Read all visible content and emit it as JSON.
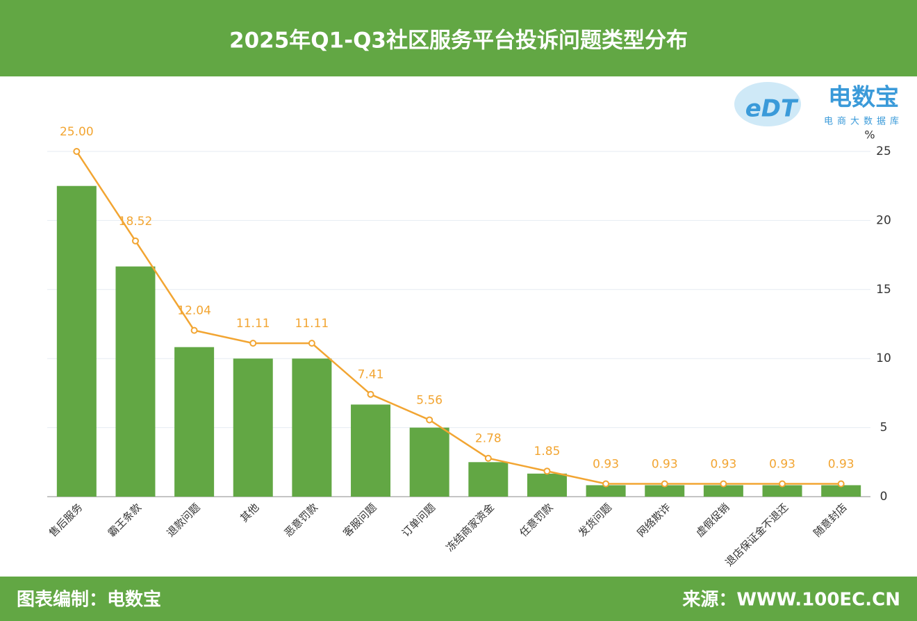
{
  "chart_data": {
    "type": "bar_line",
    "title": "2025年Q1-Q3社区服务平台投诉问题类型分布",
    "logo": {
      "mark": "eDT",
      "name": "电数宝",
      "tagline": "电商大数据库"
    },
    "credit": "图表编制：电数宝",
    "source": "来源：WWW.100EC.CN",
    "y_label": "%",
    "categories": [
      "售后服务",
      "霸王条款",
      "退款问题",
      "其他",
      "恶意罚款",
      "客服问题",
      "订单问题",
      "冻结商家资金",
      "任意罚款",
      "发货问题",
      "网络欺诈",
      "虚假促销",
      "退店保证金不退还",
      "随意封店"
    ],
    "series": [
      {
        "type": "bar",
        "color": "#62a744",
        "values": [
          22.5,
          16.67,
          10.83,
          10,
          10,
          6.67,
          5,
          2.5,
          1.67,
          0.83,
          0.83,
          0.83,
          0.83,
          0.83
        ]
      },
      {
        "type": "line",
        "color": "#f2a532",
        "values": [
          25,
          18.52,
          12.04,
          11.11,
          11.11,
          7.41,
          5.56,
          2.78,
          1.85,
          0.93,
          0.93,
          0.93,
          0.93,
          0.93
        ],
        "value_labels": [
          "25.00",
          "18.52",
          "12.04",
          "11.11",
          "11.11",
          "7.41",
          "5.56",
          "2.78",
          "1.85",
          "0.93",
          "0.93",
          "0.93",
          "0.93",
          "0.93"
        ]
      }
    ],
    "ylim": [
      0,
      25
    ],
    "yticks": [
      0,
      5,
      10,
      15,
      20,
      25
    ],
    "grid": true
  }
}
